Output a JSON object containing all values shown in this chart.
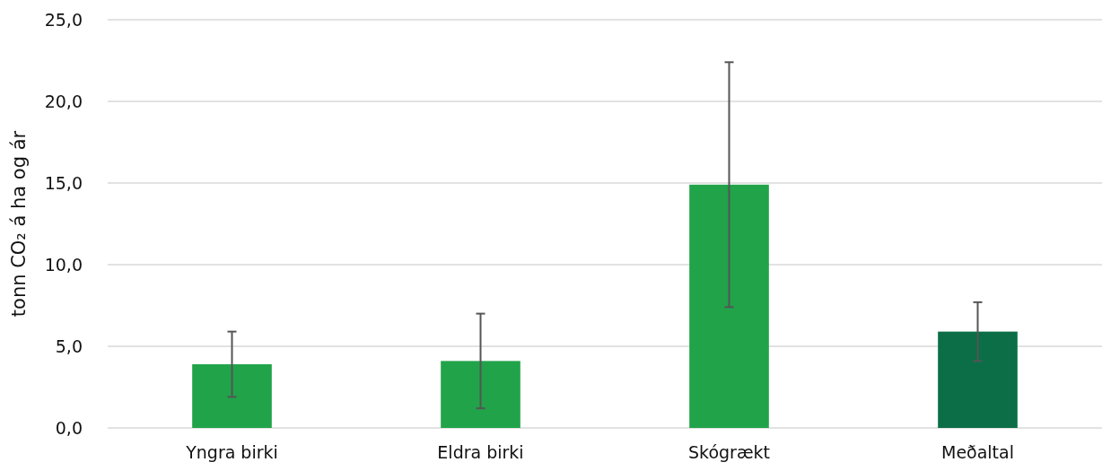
{
  "chart_data": {
    "type": "bar",
    "ylabel": "tonn CO₂ á ha og ár",
    "categories": [
      "Yngra birki",
      "Eldra birki",
      "Skógrækt",
      "Meðaltal"
    ],
    "values": [
      3.9,
      4.1,
      14.9,
      5.9
    ],
    "colors": [
      "#21a34a",
      "#21a34a",
      "#21a34a",
      "#0b6e47"
    ],
    "errors": [
      2.0,
      2.9,
      7.5,
      1.8
    ],
    "ylim": [
      0,
      25
    ],
    "yticks": [
      {
        "value": 0,
        "label": "0,0"
      },
      {
        "value": 5,
        "label": "5,0"
      },
      {
        "value": 10,
        "label": "10,0"
      },
      {
        "value": 15,
        "label": "15,0"
      },
      {
        "value": 20,
        "label": "20,0"
      },
      {
        "value": 25,
        "label": "25,0"
      }
    ],
    "grid": "y"
  }
}
